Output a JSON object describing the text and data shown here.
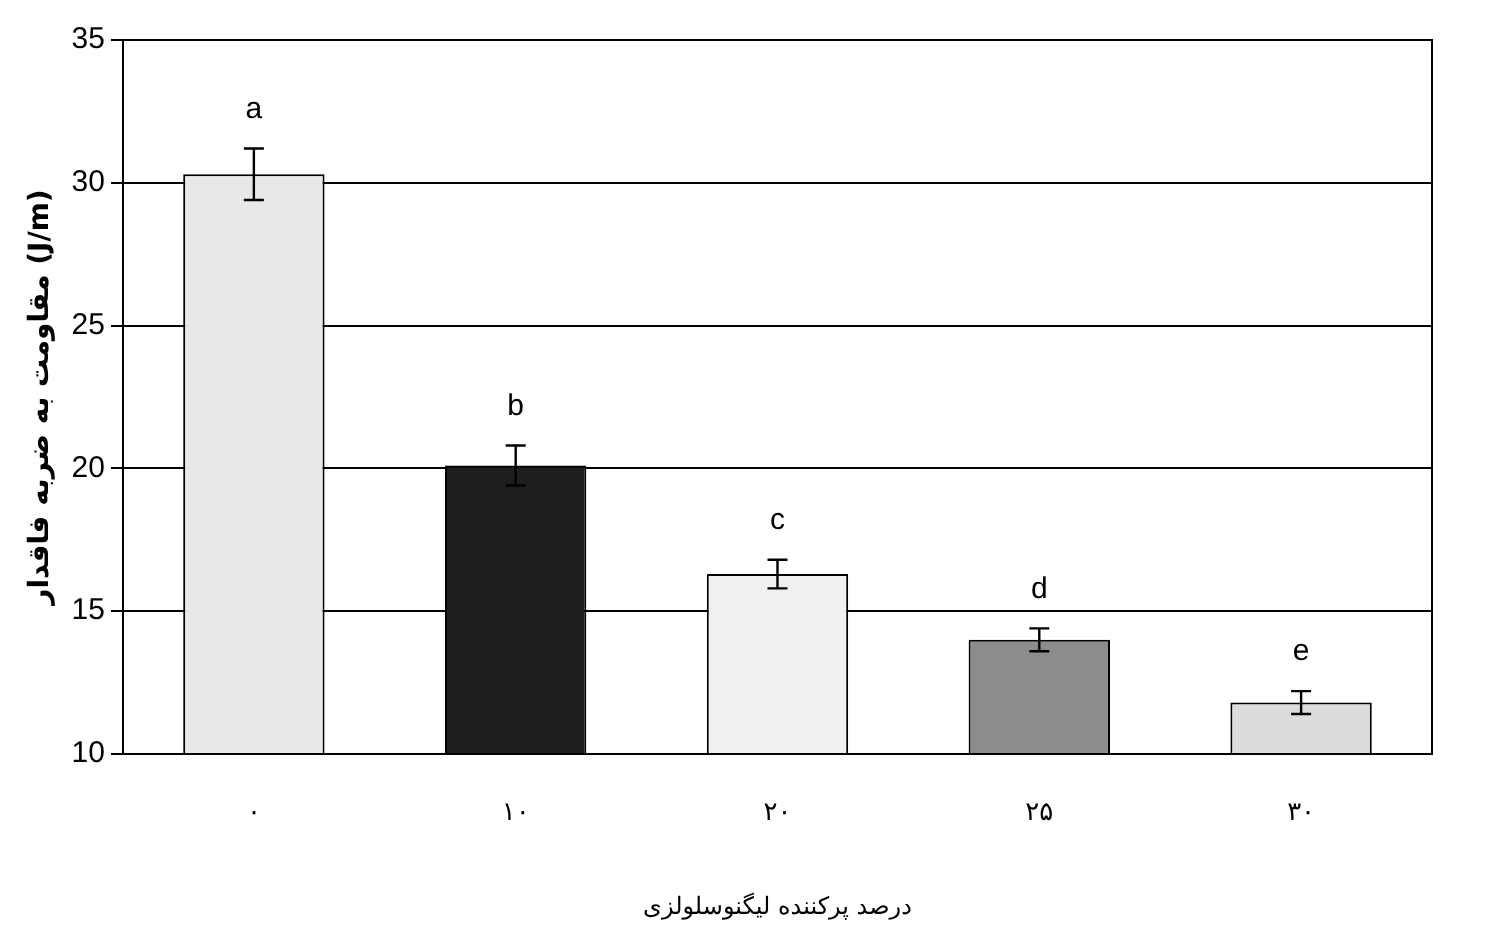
{
  "chart_data": {
    "type": "bar",
    "categories": [
      "۰",
      "۱۰",
      "۲۰",
      "۲۵",
      "۳۰"
    ],
    "values": [
      30.3,
      20.1,
      16.3,
      14.0,
      11.8
    ],
    "errors": [
      0.9,
      0.7,
      0.5,
      0.4,
      0.4
    ],
    "colors": [
      "#e8e8e8",
      "#1e1e1e",
      "#f0f0f0",
      "#8c8c8c",
      "#dcdcdc"
    ],
    "ylim": [
      10,
      35
    ],
    "yticks": [
      10,
      15,
      20,
      25,
      30,
      35
    ],
    "grid": "y",
    "legend": false,
    "xlabel": "درصد پرکننده لیگنوسلولزی",
    "ylabel": "مقاومت به ضربه فاقدار (J/m)",
    "annotations": [
      {
        "text": "a",
        "x": "۰",
        "y": 31.2
      },
      {
        "text": "b",
        "x": "۱۰",
        "y": 20.8
      },
      {
        "text": "c",
        "x": "۲۰",
        "y": 16.8
      },
      {
        "text": "d",
        "x": "۲۵",
        "y": 14.4
      },
      {
        "text": "e",
        "x": "۳۰",
        "y": 12.2
      }
    ]
  }
}
